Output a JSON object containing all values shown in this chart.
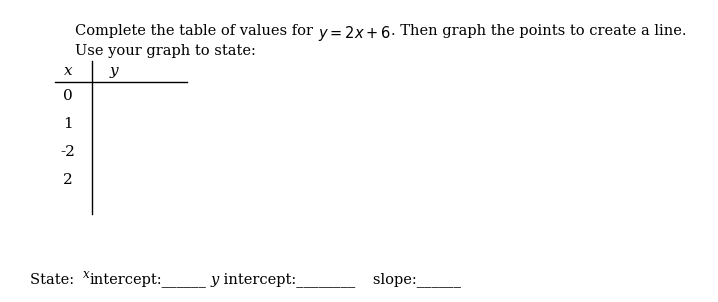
{
  "bg_color": "#ffffff",
  "text_color": "#000000",
  "font_size_title": 10.5,
  "font_size_table": 11,
  "font_size_state": 10.5,
  "x_values": [
    "0",
    "1",
    "-2",
    "2"
  ],
  "title_prefix": "Complete the table of values for ",
  "title_equation": "$y = 2x + 6$",
  "title_suffix": ". Then graph the points to create a line.",
  "title_line2": "Use your graph to state:",
  "col_x": "x",
  "col_y": "y",
  "state_prefix": "State:  ",
  "state_sup": "x",
  "state_part1": "intercept:______",
  "state_y_label": "y",
  "state_part2": " intercept:________",
  "state_part3": "   slope:______"
}
